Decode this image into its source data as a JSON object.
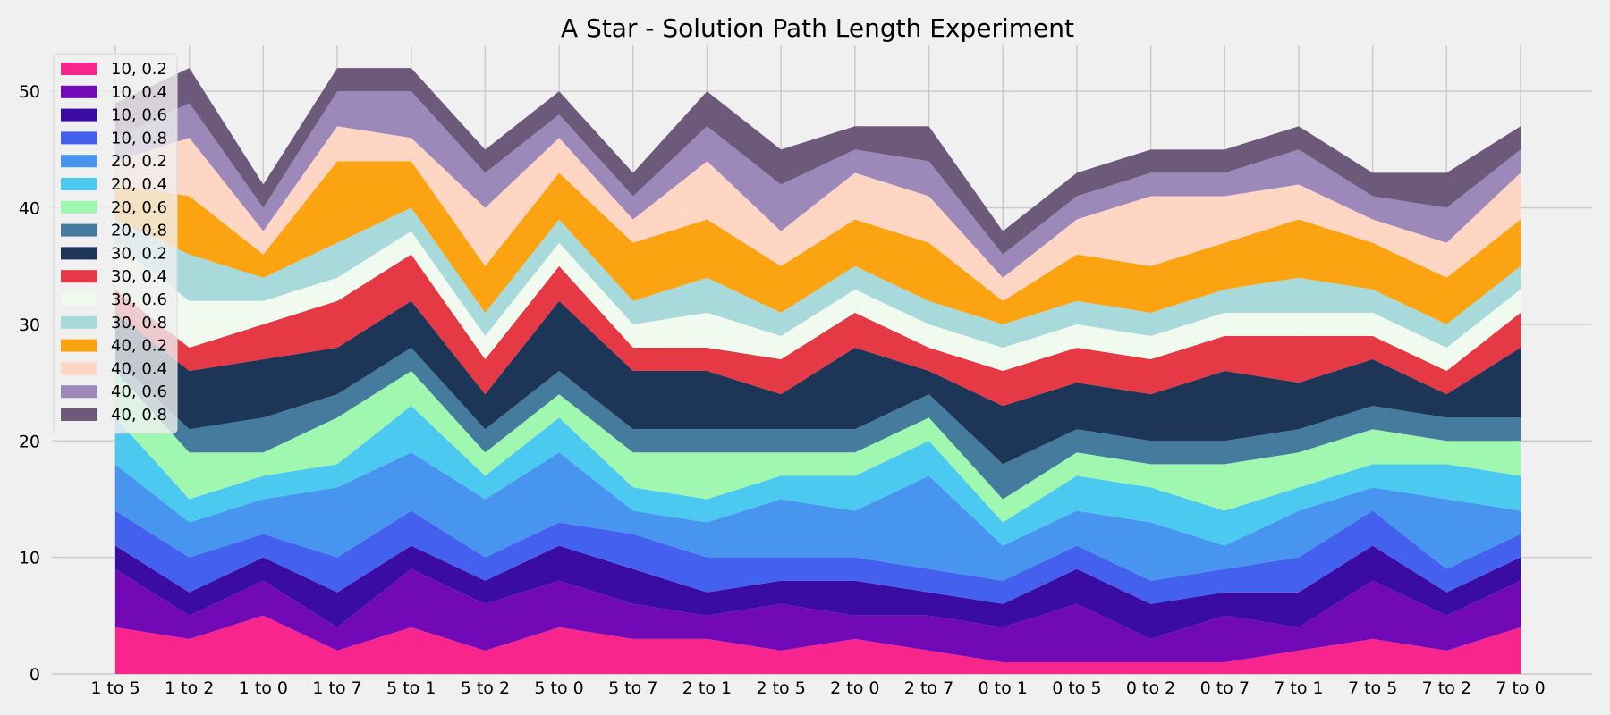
{
  "chart_data": {
    "type": "area",
    "stacked": true,
    "title": "A Star - Solution Path Length Experiment",
    "xlabel": "",
    "ylabel": "",
    "categories": [
      "1 to 5",
      "1 to 2",
      "1 to 0",
      "1 to 7",
      "5 to 1",
      "5 to 2",
      "5 to 0",
      "5 to 7",
      "2 to 1",
      "2 to 5",
      "2 to 0",
      "2 to 7",
      "0 to 1",
      "0 to 5",
      "0 to 2",
      "0 to 7",
      "7 to 1",
      "7 to 5",
      "7 to 2",
      "7 to 0"
    ],
    "ylim": [
      0,
      54
    ],
    "yticks": [
      0,
      10,
      20,
      30,
      40,
      50
    ],
    "grid": true,
    "legend_position": "top-left",
    "background": "#f0f0f0",
    "grid_color": "#cbcbcb",
    "series": [
      {
        "name": "10, 0.2",
        "color": "#f7258c",
        "values": [
          4,
          3,
          5,
          2,
          4,
          2,
          4,
          3,
          3,
          2,
          3,
          2,
          1,
          1,
          1,
          1,
          2,
          3,
          2,
          4
        ]
      },
      {
        "name": "10, 0.4",
        "color": "#7209b7",
        "values": [
          5,
          2,
          3,
          2,
          5,
          4,
          4,
          3,
          2,
          4,
          2,
          3,
          3,
          5,
          2,
          4,
          2,
          5,
          3,
          4
        ]
      },
      {
        "name": "10, 0.6",
        "color": "#3a0ca3",
        "values": [
          2,
          2,
          2,
          3,
          2,
          2,
          3,
          3,
          2,
          2,
          3,
          2,
          2,
          3,
          3,
          2,
          3,
          3,
          2,
          2
        ]
      },
      {
        "name": "10, 0.8",
        "color": "#4361ee",
        "values": [
          3,
          3,
          2,
          3,
          3,
          2,
          2,
          3,
          3,
          2,
          2,
          2,
          2,
          2,
          2,
          2,
          3,
          3,
          2,
          2
        ]
      },
      {
        "name": "20, 0.2",
        "color": "#4895ef",
        "values": [
          4,
          3,
          3,
          6,
          5,
          5,
          6,
          2,
          3,
          5,
          4,
          8,
          3,
          3,
          5,
          2,
          4,
          2,
          6,
          2
        ]
      },
      {
        "name": "20, 0.4",
        "color": "#4cc9f0",
        "values": [
          4,
          2,
          2,
          2,
          4,
          2,
          3,
          2,
          2,
          2,
          3,
          3,
          2,
          3,
          3,
          3,
          2,
          2,
          3,
          3
        ]
      },
      {
        "name": "20, 0.6",
        "color": "#a0f7b0",
        "values": [
          4,
          4,
          2,
          4,
          3,
          2,
          2,
          3,
          4,
          2,
          2,
          2,
          2,
          2,
          2,
          4,
          3,
          3,
          2,
          3
        ]
      },
      {
        "name": "20, 0.8",
        "color": "#457b9d",
        "values": [
          1,
          2,
          3,
          2,
          2,
          2,
          2,
          2,
          2,
          2,
          2,
          2,
          3,
          2,
          2,
          2,
          2,
          2,
          2,
          2
        ]
      },
      {
        "name": "30, 0.2",
        "color": "#1d3557",
        "values": [
          4,
          5,
          5,
          4,
          4,
          3,
          6,
          5,
          5,
          3,
          7,
          2,
          5,
          4,
          4,
          6,
          4,
          4,
          2,
          6
        ]
      },
      {
        "name": "30, 0.4",
        "color": "#e63946",
        "values": [
          2,
          2,
          3,
          4,
          4,
          3,
          3,
          2,
          2,
          3,
          3,
          2,
          3,
          3,
          3,
          3,
          4,
          2,
          2,
          3
        ]
      },
      {
        "name": "30, 0.6",
        "color": "#f1faee",
        "values": [
          4,
          4,
          2,
          2,
          2,
          2,
          2,
          2,
          3,
          2,
          2,
          2,
          2,
          2,
          2,
          2,
          2,
          2,
          2,
          2
        ]
      },
      {
        "name": "30, 0.8",
        "color": "#a8dadc",
        "values": [
          2,
          4,
          2,
          3,
          2,
          2,
          2,
          2,
          3,
          2,
          2,
          2,
          2,
          2,
          2,
          2,
          3,
          2,
          2,
          2
        ]
      },
      {
        "name": "40, 0.2",
        "color": "#fca311",
        "values": [
          3,
          5,
          2,
          7,
          4,
          4,
          4,
          5,
          5,
          4,
          4,
          5,
          2,
          4,
          4,
          4,
          5,
          4,
          4,
          4
        ]
      },
      {
        "name": "40, 0.4",
        "color": "#ffd6c4",
        "values": [
          2,
          5,
          2,
          3,
          2,
          5,
          3,
          2,
          5,
          3,
          4,
          4,
          2,
          3,
          6,
          4,
          3,
          2,
          3,
          4
        ]
      },
      {
        "name": "40, 0.6",
        "color": "#9d89b9",
        "values": [
          2,
          3,
          2,
          3,
          4,
          3,
          2,
          2,
          3,
          4,
          2,
          3,
          2,
          2,
          2,
          2,
          3,
          2,
          3,
          2
        ]
      },
      {
        "name": "40, 0.8",
        "color": "#6d597a",
        "values": [
          3,
          3,
          2,
          2,
          2,
          2,
          2,
          2,
          3,
          3,
          2,
          3,
          2,
          2,
          2,
          2,
          2,
          2,
          3,
          2
        ]
      }
    ]
  }
}
